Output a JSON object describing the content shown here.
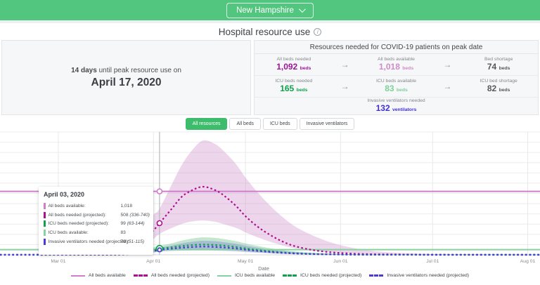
{
  "header": {
    "region": "New Hampshire"
  },
  "title": {
    "text": "Hospital resource use",
    "info_glyph": "i"
  },
  "peak_panel": {
    "days_bold": "14 days",
    "rest": " until peak resource use on",
    "date": "April 17, 2020"
  },
  "resources_panel": {
    "title": "Resources needed for COVID-19 patients on peak date",
    "arrow": "→",
    "rows": [
      {
        "cells": [
          {
            "label": "All beds needed",
            "value": "1,092",
            "unit": "beds",
            "color": "#9c1598"
          },
          {
            "label": "All beds available",
            "value": "1,018",
            "unit": "beds",
            "color": "#cf8bca"
          },
          {
            "label": "Bed shortage",
            "value": "74",
            "unit": "beds",
            "color": "#55585c"
          }
        ]
      },
      {
        "cells": [
          {
            "label": "ICU beds needed",
            "value": "165",
            "unit": "beds",
            "color": "#0fa14d"
          },
          {
            "label": "ICU beds available",
            "value": "83",
            "unit": "beds",
            "color": "#7fcf99"
          },
          {
            "label": "ICU bed shortage",
            "value": "82",
            "unit": "beds",
            "color": "#55585c"
          }
        ]
      }
    ],
    "row3": {
      "label": "Invasive ventilators needed",
      "value": "132",
      "unit": "ventilators",
      "color": "#3f2fd5"
    }
  },
  "tabs": [
    {
      "label": "All resources",
      "active": true
    },
    {
      "label": "All beds",
      "active": false
    },
    {
      "label": "ICU beds",
      "active": false
    },
    {
      "label": "Invasive ventilators",
      "active": false
    }
  ],
  "chart_data": {
    "type": "line",
    "xlabel": "Date",
    "x_domain_days": [
      0,
      176
    ],
    "ylim": [
      0,
      1970
    ],
    "grid": true,
    "legend_position": "bottom",
    "x_ticks": [
      {
        "day": 19,
        "label": "Mar 01"
      },
      {
        "day": 50,
        "label": "Apr 01"
      },
      {
        "day": 80,
        "label": "May 01"
      },
      {
        "day": 111,
        "label": "Jun 01"
      },
      {
        "day": 141,
        "label": "Jul 01"
      },
      {
        "day": 172,
        "label": "Aug 01"
      }
    ],
    "series": [
      {
        "name": "All beds available",
        "style": "solid",
        "color": "#d07ecb",
        "constant": 1018
      },
      {
        "name": "All beds needed (projected)",
        "style": "dotted",
        "color": "#ae0f8f",
        "band_color": "rgba(197,120,192,0.30)",
        "points": [
          [
            0,
            2
          ],
          [
            20,
            3
          ],
          [
            30,
            6
          ],
          [
            36,
            15
          ],
          [
            40,
            45
          ],
          [
            44,
            130
          ],
          [
            47,
            250
          ],
          [
            50,
            390
          ],
          [
            52,
            508
          ],
          [
            56,
            740
          ],
          [
            59,
            920
          ],
          [
            62,
            1020
          ],
          [
            66,
            1092
          ],
          [
            70,
            1040
          ],
          [
            73,
            950
          ],
          [
            77,
            780
          ],
          [
            80,
            620
          ],
          [
            84,
            450
          ],
          [
            88,
            320
          ],
          [
            92,
            215
          ],
          [
            96,
            140
          ],
          [
            101,
            85
          ],
          [
            106,
            50
          ],
          [
            111,
            30
          ],
          [
            118,
            14
          ],
          [
            126,
            7
          ],
          [
            136,
            4
          ],
          [
            150,
            2
          ],
          [
            176,
            1
          ]
        ],
        "band": [
          [
            36,
            5,
            40
          ],
          [
            40,
            15,
            110
          ],
          [
            44,
            45,
            300
          ],
          [
            47,
            110,
            480
          ],
          [
            50,
            250,
            640
          ],
          [
            52,
            336,
            740
          ],
          [
            56,
            430,
            1130
          ],
          [
            59,
            490,
            1420
          ],
          [
            62,
            530,
            1640
          ],
          [
            66,
            550,
            1830
          ],
          [
            70,
            530,
            1780
          ],
          [
            73,
            490,
            1660
          ],
          [
            77,
            430,
            1450
          ],
          [
            80,
            360,
            1240
          ],
          [
            84,
            280,
            1000
          ],
          [
            88,
            210,
            790
          ],
          [
            92,
            150,
            610
          ],
          [
            96,
            105,
            460
          ],
          [
            101,
            68,
            330
          ],
          [
            106,
            42,
            230
          ],
          [
            111,
            26,
            155
          ],
          [
            118,
            13,
            85
          ],
          [
            126,
            6,
            42
          ],
          [
            136,
            3,
            18
          ],
          [
            150,
            1,
            7
          ],
          [
            176,
            0,
            2
          ]
        ]
      },
      {
        "name": "ICU beds available",
        "style": "solid",
        "color": "#86d29f",
        "constant": 83
      },
      {
        "name": "ICU beds needed (projected)",
        "style": "dotted",
        "color": "#0fa14d",
        "band_color": "rgba(96,190,130,0.38)",
        "points": [
          [
            0,
            0
          ],
          [
            30,
            1
          ],
          [
            36,
            3
          ],
          [
            40,
            8
          ],
          [
            44,
            22
          ],
          [
            47,
            45
          ],
          [
            50,
            73
          ],
          [
            52,
            99
          ],
          [
            56,
            122
          ],
          [
            59,
            140
          ],
          [
            62,
            153
          ],
          [
            66,
            165
          ],
          [
            70,
            158
          ],
          [
            73,
            147
          ],
          [
            77,
            126
          ],
          [
            80,
            103
          ],
          [
            84,
            78
          ],
          [
            88,
            57
          ],
          [
            92,
            40
          ],
          [
            96,
            27
          ],
          [
            101,
            17
          ],
          [
            106,
            10
          ],
          [
            111,
            6
          ],
          [
            118,
            3
          ],
          [
            126,
            1
          ],
          [
            150,
            0
          ],
          [
            176,
            0
          ]
        ],
        "band": [
          [
            40,
            3,
            16
          ],
          [
            44,
            8,
            40
          ],
          [
            47,
            20,
            75
          ],
          [
            50,
            45,
            120
          ],
          [
            52,
            63,
            144
          ],
          [
            56,
            76,
            185
          ],
          [
            59,
            84,
            225
          ],
          [
            62,
            88,
            255
          ],
          [
            66,
            90,
            280
          ],
          [
            70,
            86,
            272
          ],
          [
            73,
            80,
            252
          ],
          [
            77,
            68,
            218
          ],
          [
            80,
            56,
            182
          ],
          [
            84,
            42,
            142
          ],
          [
            88,
            30,
            106
          ],
          [
            92,
            21,
            77
          ],
          [
            96,
            14,
            54
          ],
          [
            101,
            9,
            35
          ],
          [
            106,
            5,
            22
          ],
          [
            111,
            3,
            14
          ],
          [
            118,
            1,
            7
          ],
          [
            126,
            0,
            3
          ],
          [
            150,
            0,
            1
          ],
          [
            176,
            0,
            0
          ]
        ]
      },
      {
        "name": "Invasive ventilators needed (projected)",
        "style": "dotted",
        "color": "#4a3ad7",
        "band_color": "rgba(104,96,214,0.30)",
        "points": [
          [
            0,
            0
          ],
          [
            30,
            1
          ],
          [
            36,
            2
          ],
          [
            40,
            6
          ],
          [
            44,
            17
          ],
          [
            47,
            35
          ],
          [
            50,
            58
          ],
          [
            52,
            79
          ],
          [
            56,
            98
          ],
          [
            59,
            112
          ],
          [
            62,
            122
          ],
          [
            66,
            132
          ],
          [
            70,
            126
          ],
          [
            73,
            117
          ],
          [
            77,
            100
          ],
          [
            80,
            82
          ],
          [
            84,
            62
          ],
          [
            88,
            45
          ],
          [
            92,
            31
          ],
          [
            96,
            21
          ],
          [
            101,
            13
          ],
          [
            106,
            8
          ],
          [
            111,
            5
          ],
          [
            118,
            2
          ],
          [
            126,
            1
          ],
          [
            150,
            0
          ],
          [
            176,
            0
          ]
        ],
        "band": [
          [
            40,
            2,
            12
          ],
          [
            44,
            6,
            30
          ],
          [
            47,
            15,
            58
          ],
          [
            50,
            36,
            95
          ],
          [
            52,
            51,
            115
          ],
          [
            56,
            62,
            148
          ],
          [
            59,
            68,
            180
          ],
          [
            62,
            71,
            205
          ],
          [
            66,
            72,
            225
          ],
          [
            70,
            69,
            218
          ],
          [
            73,
            64,
            202
          ],
          [
            77,
            55,
            175
          ],
          [
            80,
            45,
            146
          ],
          [
            84,
            34,
            114
          ],
          [
            88,
            24,
            85
          ],
          [
            92,
            17,
            62
          ],
          [
            96,
            11,
            43
          ],
          [
            101,
            7,
            28
          ],
          [
            106,
            4,
            18
          ],
          [
            111,
            2,
            11
          ],
          [
            118,
            1,
            5
          ],
          [
            126,
            0,
            2
          ],
          [
            150,
            0,
            1
          ],
          [
            176,
            0,
            0
          ]
        ]
      }
    ],
    "hover_day": 52
  },
  "tooltip": {
    "date": "April 03, 2020",
    "rows": [
      {
        "label": "All beds available:",
        "value": "1,018",
        "range": "",
        "num": 1018,
        "r": 3.5,
        "color": "#d07ecb"
      },
      {
        "label": "All beds needed (projected):",
        "value": "508",
        "range": "(336-740)",
        "num": 508,
        "r": 3.5,
        "color": "#ae0f8f"
      },
      {
        "label": "ICU beds needed (projected):",
        "value": "99",
        "range": "(63-144)",
        "num": 99,
        "r": 4.5,
        "color": "#0fa14d"
      },
      {
        "label": "ICU beds available:",
        "value": "83",
        "range": "",
        "num": 83,
        "r": 3,
        "color": "#86d29f"
      },
      {
        "label": "Invasive ventilators needed (projected):",
        "value": "79",
        "range": "(51-115)",
        "num": 79,
        "r": 2.6,
        "color": "#4a3ad7"
      }
    ]
  }
}
